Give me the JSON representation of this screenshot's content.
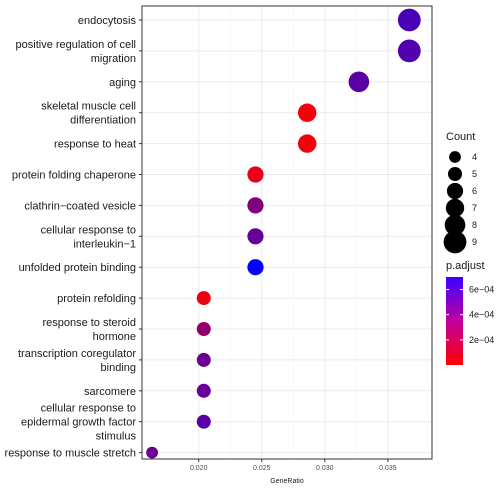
{
  "chart_data": {
    "type": "scatter",
    "title": "",
    "xlabel": "GeneRatio",
    "ylabel": "",
    "xlim": [
      0.0155,
      0.0385
    ],
    "x_ticks": [
      {
        "value": 0.02,
        "label": "0.020"
      },
      {
        "value": 0.025,
        "label": "0.025"
      },
      {
        "value": 0.03,
        "label": "0.030"
      },
      {
        "value": 0.035,
        "label": "0.035"
      }
    ],
    "grid": true,
    "legend_placement": "right",
    "terms": [
      {
        "lines": [
          "endocytosis"
        ],
        "gene_ratio": 0.0367,
        "count": 9,
        "p_adjust": 0.0005
      },
      {
        "lines": [
          "positive regulation of cell",
          "migration"
        ],
        "gene_ratio": 0.0367,
        "count": 9,
        "p_adjust": 0.00048
      },
      {
        "lines": [
          "aging"
        ],
        "gene_ratio": 0.0327,
        "count": 8,
        "p_adjust": 0.00045
      },
      {
        "lines": [
          "skeletal muscle cell",
          "differentiation"
        ],
        "gene_ratio": 0.0286,
        "count": 7,
        "p_adjust": 3e-05
      },
      {
        "lines": [
          "response to heat"
        ],
        "gene_ratio": 0.0286,
        "count": 7,
        "p_adjust": 3e-05
      },
      {
        "lines": [
          "protein folding chaperone"
        ],
        "gene_ratio": 0.0245,
        "count": 6,
        "p_adjust": 6e-05
      },
      {
        "lines": [
          "clathrin−coated vesicle"
        ],
        "gene_ratio": 0.0245,
        "count": 6,
        "p_adjust": 0.00035
      },
      {
        "lines": [
          "cellular response to",
          "interleukin−1"
        ],
        "gene_ratio": 0.0245,
        "count": 6,
        "p_adjust": 0.00042
      },
      {
        "lines": [
          "unfolded protein binding"
        ],
        "gene_ratio": 0.0245,
        "count": 6,
        "p_adjust": 0.00068
      },
      {
        "lines": [
          "protein refolding"
        ],
        "gene_ratio": 0.0204,
        "count": 5,
        "p_adjust": 5e-05
      },
      {
        "lines": [
          "response to steroid",
          "hormone"
        ],
        "gene_ratio": 0.0204,
        "count": 5,
        "p_adjust": 0.0003
      },
      {
        "lines": [
          "transcription coregulator",
          "binding"
        ],
        "gene_ratio": 0.0204,
        "count": 5,
        "p_adjust": 0.0004
      },
      {
        "lines": [
          "sarcomere"
        ],
        "gene_ratio": 0.0204,
        "count": 5,
        "p_adjust": 0.00042
      },
      {
        "lines": [
          "cellular response to",
          "epidermal growth factor",
          "stimulus"
        ],
        "gene_ratio": 0.0204,
        "count": 5,
        "p_adjust": 0.00045
      },
      {
        "lines": [
          "response to muscle stretch"
        ],
        "gene_ratio": 0.0163,
        "count": 4,
        "p_adjust": 0.0004
      }
    ],
    "size_legend": {
      "title": "Count",
      "entries": [
        {
          "value": 4,
          "label": "4"
        },
        {
          "value": 5,
          "label": "5"
        },
        {
          "value": 6,
          "label": "6"
        },
        {
          "value": 7,
          "label": "7"
        },
        {
          "value": 8,
          "label": "8"
        },
        {
          "value": 9,
          "label": "9"
        }
      ]
    },
    "color_legend": {
      "title": "p.adjust",
      "range": [
        0.0,
        0.0007
      ],
      "ticks": [
        {
          "value": 0.0006,
          "label": "6e−04"
        },
        {
          "value": 0.0004,
          "label": "4e−04"
        },
        {
          "value": 0.0002,
          "label": "2e−04"
        }
      ],
      "low_color": "#ff0000",
      "high_color": "#0000ff"
    },
    "colors": {
      "panel_border": "#333333",
      "grid_major": "#ebebeb",
      "grid_minor": "#f5f5f5",
      "tick": "#333333"
    }
  }
}
